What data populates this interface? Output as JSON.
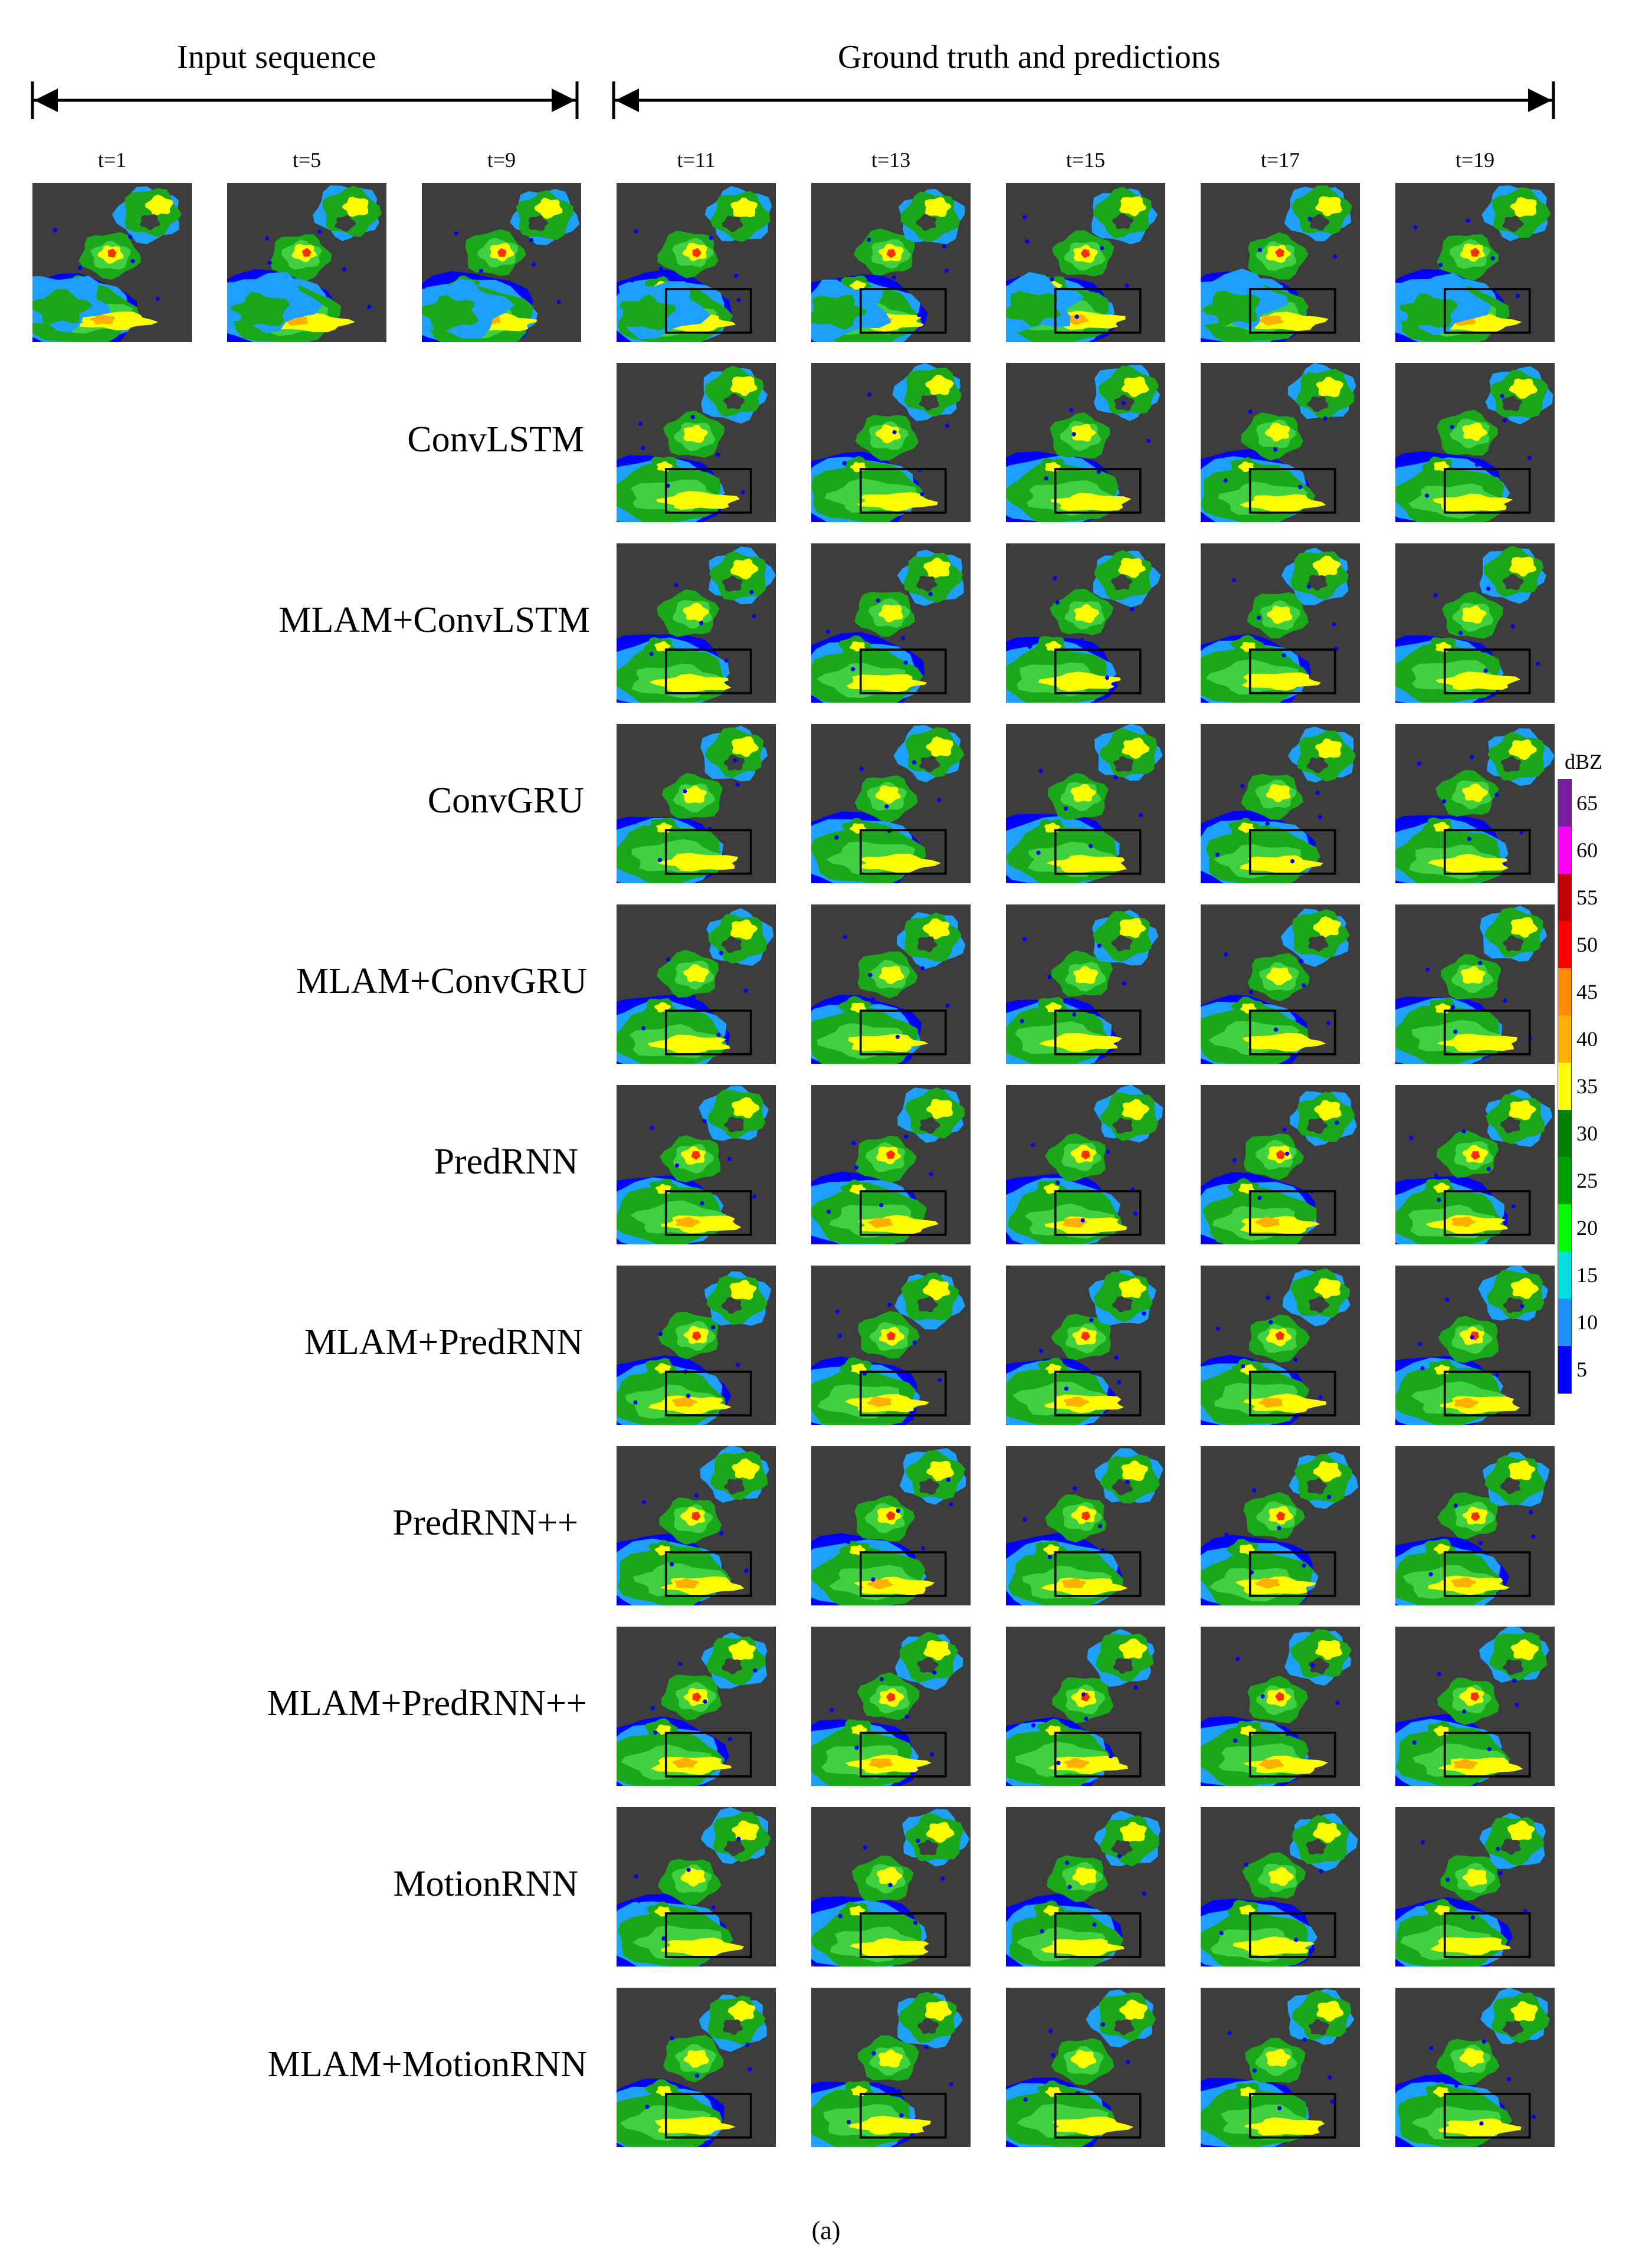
{
  "figure": {
    "input_header": "Input sequence",
    "output_header": "Ground truth and predictions",
    "input_times": [
      "t=1",
      "t=5",
      "t=9"
    ],
    "output_times": [
      "t=11",
      "t=13",
      "t=15",
      "t=17",
      "t=19"
    ],
    "models": [
      "ConvLSTM",
      "MLAM+ConvLSTM",
      "ConvGRU",
      "MLAM+ConvGRU",
      "PredRNN",
      "MLAM+PredRNN",
      "PredRNN++",
      "MLAM+PredRNN++",
      "MotionRNN",
      "MLAM+MotionRNN"
    ],
    "caption": "(a)"
  },
  "colorbar": {
    "unit": "dBZ",
    "ticks": [
      "65",
      "60",
      "55",
      "50",
      "45",
      "40",
      "35",
      "30",
      "25",
      "20",
      "15",
      "10",
      "5"
    ],
    "colors": [
      "#7b1fa2",
      "#ff00ff",
      "#c00000",
      "#ff0000",
      "#ff8c00",
      "#ffb000",
      "#ffff00",
      "#008000",
      "#00a000",
      "#00ff00",
      "#00e0e0",
      "#1e90ff",
      "#0000ff"
    ]
  },
  "palette": {
    "background": "#3d3d3d",
    "low": "#0000ff",
    "light": "#1ea0ff",
    "green": "#1aa81a",
    "bright_green": "#40d040",
    "yellow": "#ffff00",
    "orange": "#ffb000",
    "red": "#ff3000"
  }
}
